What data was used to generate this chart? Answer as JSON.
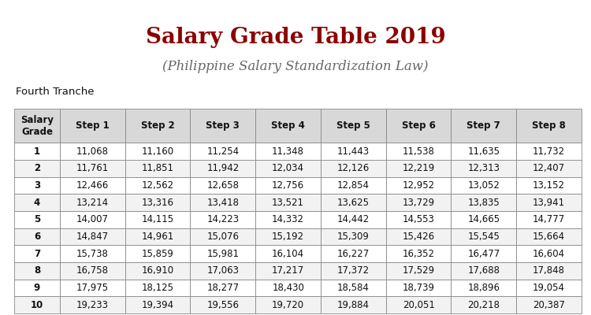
{
  "title": "Salary Grade Table 2019",
  "subtitle": "(Philippine Salary Standardization Law)",
  "tranche_label": "Fourth Tranche",
  "columns": [
    "Salary\nGrade",
    "Step 1",
    "Step 2",
    "Step 3",
    "Step 4",
    "Step 5",
    "Step 6",
    "Step 7",
    "Step 8"
  ],
  "rows": [
    [
      "1",
      "11,068",
      "11,160",
      "11,254",
      "11,348",
      "11,443",
      "11,538",
      "11,635",
      "11,732"
    ],
    [
      "2",
      "11,761",
      "11,851",
      "11,942",
      "12,034",
      "12,126",
      "12,219",
      "12,313",
      "12,407"
    ],
    [
      "3",
      "12,466",
      "12,562",
      "12,658",
      "12,756",
      "12,854",
      "12,952",
      "13,052",
      "13,152"
    ],
    [
      "4",
      "13,214",
      "13,316",
      "13,418",
      "13,521",
      "13,625",
      "13,729",
      "13,835",
      "13,941"
    ],
    [
      "5",
      "14,007",
      "14,115",
      "14,223",
      "14,332",
      "14,442",
      "14,553",
      "14,665",
      "14,777"
    ],
    [
      "6",
      "14,847",
      "14,961",
      "15,076",
      "15,192",
      "15,309",
      "15,426",
      "15,545",
      "15,664"
    ],
    [
      "7",
      "15,738",
      "15,859",
      "15,981",
      "16,104",
      "16,227",
      "16,352",
      "16,477",
      "16,604"
    ],
    [
      "8",
      "16,758",
      "16,910",
      "17,063",
      "17,217",
      "17,372",
      "17,529",
      "17,688",
      "17,848"
    ],
    [
      "9",
      "17,975",
      "18,125",
      "18,277",
      "18,430",
      "18,584",
      "18,739",
      "18,896",
      "19,054"
    ],
    [
      "10",
      "19,233",
      "19,394",
      "19,556",
      "19,720",
      "19,884",
      "20,051",
      "20,218",
      "20,387"
    ]
  ],
  "title_color": "#8B0000",
  "subtitle_color": "#666666",
  "header_bg": "#D8D8D8",
  "row_bg_odd": "#FFFFFF",
  "row_bg_even": "#F2F2F2",
  "border_color": "#888888",
  "text_color": "#111111",
  "bg_color": "#FFFFFF",
  "title_fontsize": 20,
  "subtitle_fontsize": 12,
  "tranche_fontsize": 9.5,
  "header_fontsize": 8.5,
  "cell_fontsize": 8.5
}
